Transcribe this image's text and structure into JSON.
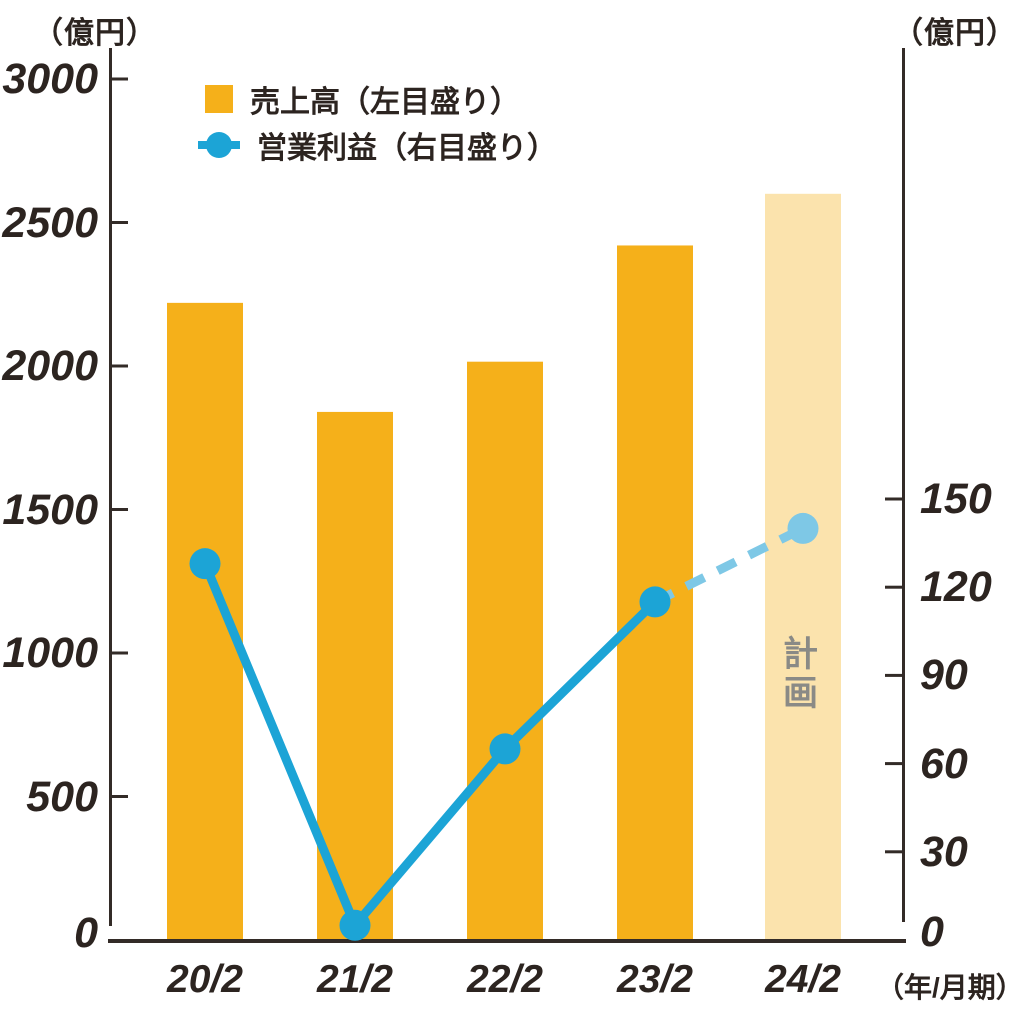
{
  "chart_data": {
    "type": "bar",
    "title": "",
    "categories": [
      "20/2",
      "21/2",
      "22/2",
      "23/2",
      "24/2"
    ],
    "x_axis_suffix": "（年/月期）",
    "series": [
      {
        "name": "売上高（左目盛り）",
        "type": "bar",
        "axis": "left",
        "values": [
          2220,
          1840,
          2015,
          2420,
          2600
        ],
        "last_is_plan": true
      },
      {
        "name": "営業利益（右目盛り）",
        "type": "line",
        "axis": "right",
        "values": [
          128,
          5,
          65,
          115,
          140
        ],
        "last_is_plan": true
      }
    ],
    "plan_label": "計画",
    "left_axis": {
      "unit": "（億円）",
      "min": 0,
      "max": 3000,
      "ticks": [
        0,
        500,
        1000,
        1500,
        2000,
        2500,
        3000
      ]
    },
    "right_axis": {
      "unit": "（億円）",
      "min": 0,
      "max": 150,
      "ticks": [
        0,
        30,
        60,
        90,
        120,
        150
      ]
    },
    "legend_position": "top-left",
    "grid": false
  },
  "colors": {
    "bar": "#F5B01A",
    "bar_plan": "#FBE3AD",
    "line": "#1CA4D6",
    "line_plan": "#7EC8E6",
    "text": "#2C2420",
    "axis": "#332B27",
    "plan_text": "#8A8A86"
  }
}
